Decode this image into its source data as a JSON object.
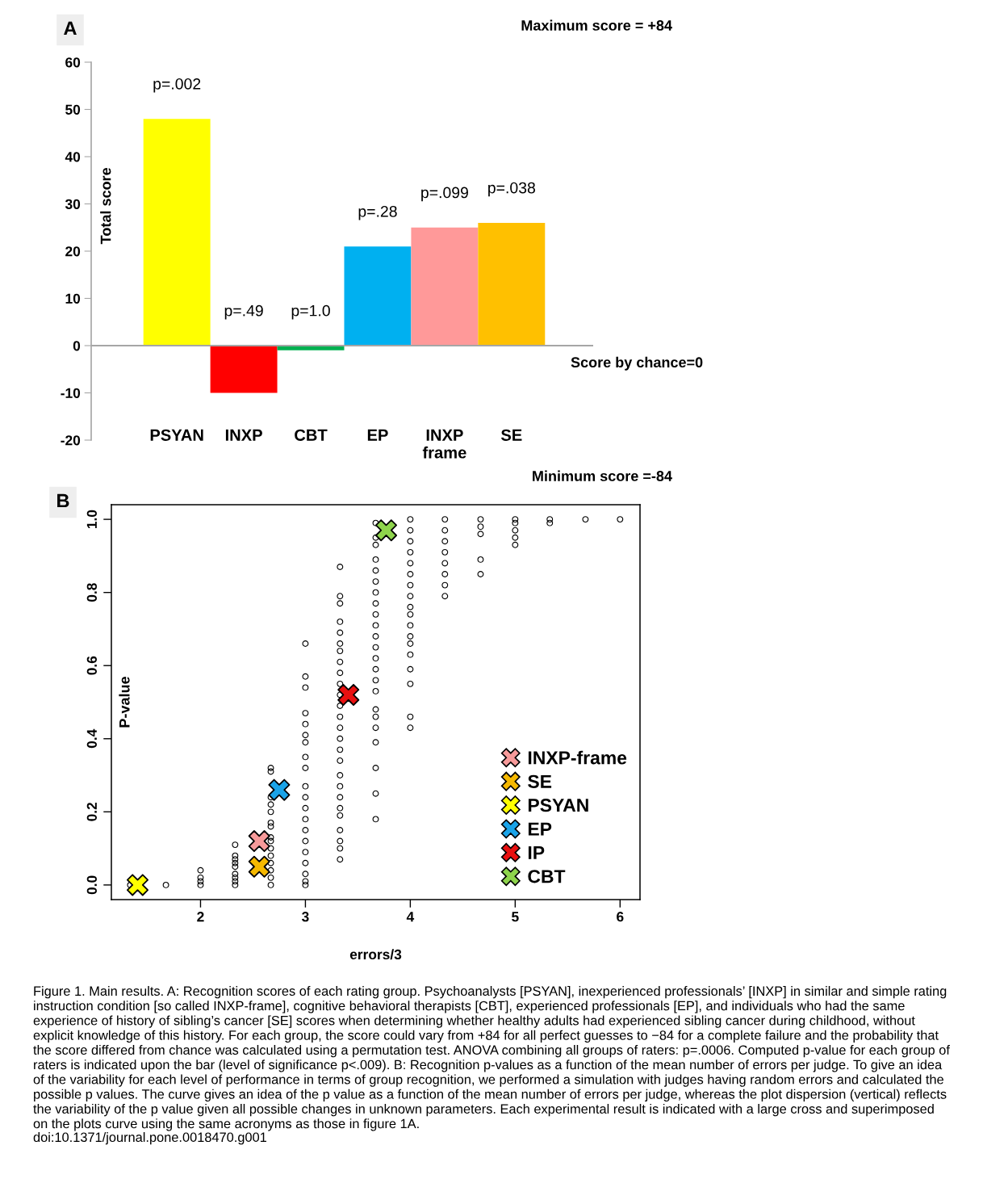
{
  "chart_data": [
    {
      "type": "bar",
      "title": "A",
      "ylabel": "Total score",
      "categories": [
        "PSYAN",
        "INXP",
        "CBT",
        "EP",
        "INXP\nframe",
        "SE"
      ],
      "values": [
        48,
        -10,
        -1,
        21,
        25,
        26
      ],
      "colors": [
        "#ffff00",
        "#ff0000",
        "#00b050",
        "#00b0f0",
        "#ff9999",
        "#ffc000"
      ],
      "ylim": [
        -20,
        60
      ],
      "yticks": [
        -20,
        -10,
        0,
        10,
        20,
        30,
        40,
        50,
        60
      ],
      "ref_lines": [
        {
          "axis": "y",
          "value": 0,
          "label": "Score by chance=0",
          "color": "#a6a6a6"
        }
      ],
      "annotations": [
        "Maximum score = +84",
        "Minimum score =-84",
        {
          "text": "p=.002",
          "x": "PSYAN",
          "y": 48
        },
        {
          "text": "p=.49",
          "x": "INXP",
          "y": 0
        },
        {
          "text": "p=1.0",
          "x": "CBT",
          "y": 0
        },
        {
          "text": "p=.28",
          "x": "EP",
          "y": 21
        },
        {
          "text": "p=.099",
          "x": "INXP\nframe",
          "y": 25
        },
        {
          "text": "p=.038",
          "x": "SE",
          "y": 26
        }
      ]
    },
    {
      "type": "scatter",
      "title": "B",
      "xlabel": "errors/3",
      "ylabel": "P-value",
      "xlim": [
        1.15,
        6.19
      ],
      "ylim": [
        -0.04,
        1.04
      ],
      "xticks": [
        2,
        3,
        4,
        5,
        6
      ],
      "yticks": [
        {
          "value": 0,
          "label": "0.0"
        },
        {
          "value": 0.2,
          "label": "0.2"
        },
        {
          "value": 0.4,
          "label": "0.4"
        },
        {
          "value": 0.6,
          "label": "0.6"
        },
        {
          "value": 0.8,
          "label": "0.8"
        },
        {
          "value": 1,
          "label": "1.0"
        }
      ],
      "legend": "bottom right",
      "series": [
        {
          "color": "#000000",
          "marker": "circle",
          "x": [
            1.33,
            1.67,
            2,
            2,
            2,
            2,
            2.33,
            2.33,
            2.33,
            2.33,
            2.33,
            2.33,
            2.33,
            2.33,
            2.33,
            2.67,
            2.67,
            2.67,
            2.67,
            2.67,
            2.67,
            2.67,
            2.67,
            2.67,
            2.67,
            2.67,
            2.67,
            2.67,
            2.67,
            2.67,
            3,
            3,
            3,
            3,
            3,
            3,
            3,
            3,
            3,
            3,
            3,
            3,
            3,
            3,
            3,
            3,
            3,
            3,
            3,
            3,
            3.33,
            3.33,
            3.33,
            3.33,
            3.33,
            3.33,
            3.33,
            3.33,
            3.33,
            3.33,
            3.33,
            3.33,
            3.33,
            3.33,
            3.33,
            3.33,
            3.33,
            3.33,
            3.33,
            3.33,
            3.33,
            3.33,
            3.33,
            3.33,
            3.33,
            3.33,
            3.67,
            3.67,
            3.67,
            3.67,
            3.67,
            3.67,
            3.67,
            3.67,
            3.67,
            3.67,
            3.67,
            3.67,
            3.67,
            3.67,
            3.67,
            3.67,
            3.67,
            3.67,
            3.67,
            3.67,
            3.67,
            3.67,
            3.67,
            4,
            4,
            4,
            4,
            4,
            4,
            4,
            4,
            4,
            4,
            4,
            4,
            4,
            4,
            4,
            4,
            4,
            4,
            4.33,
            4.33,
            4.33,
            4.33,
            4.33,
            4.33,
            4.33,
            4.33,
            4.67,
            4.67,
            4.67,
            4.67,
            4.67,
            5,
            5,
            5,
            5,
            5,
            5.33,
            5.33,
            5.67,
            6
          ],
          "values": [
            0.0,
            0.0,
            0.0,
            0.01,
            0.02,
            0.04,
            0.0,
            0.01,
            0.02,
            0.03,
            0.05,
            0.06,
            0.07,
            0.08,
            0.11,
            0.0,
            0.02,
            0.04,
            0.06,
            0.08,
            0.1,
            0.12,
            0.13,
            0.16,
            0.17,
            0.2,
            0.22,
            0.24,
            0.31,
            0.32,
            0.0,
            0.01,
            0.03,
            0.06,
            0.09,
            0.12,
            0.15,
            0.18,
            0.21,
            0.24,
            0.27,
            0.32,
            0.35,
            0.39,
            0.41,
            0.44,
            0.47,
            0.54,
            0.57,
            0.66,
            0.07,
            0.1,
            0.12,
            0.15,
            0.19,
            0.21,
            0.24,
            0.27,
            0.3,
            0.34,
            0.37,
            0.4,
            0.43,
            0.46,
            0.49,
            0.52,
            0.55,
            0.58,
            0.61,
            0.64,
            0.66,
            0.69,
            0.72,
            0.77,
            0.79,
            0.87,
            0.18,
            0.25,
            0.32,
            0.39,
            0.43,
            0.46,
            0.48,
            0.53,
            0.56,
            0.59,
            0.62,
            0.65,
            0.68,
            0.71,
            0.74,
            0.77,
            0.8,
            0.83,
            0.86,
            0.89,
            0.93,
            0.95,
            0.99,
            0.43,
            0.46,
            0.55,
            0.59,
            0.63,
            0.66,
            0.68,
            0.71,
            0.74,
            0.76,
            0.79,
            0.82,
            0.85,
            0.88,
            0.91,
            0.94,
            0.97,
            1.0,
            0.79,
            0.82,
            0.85,
            0.88,
            0.91,
            0.94,
            0.97,
            1.0,
            0.85,
            0.89,
            0.96,
            0.98,
            1.0,
            0.93,
            0.95,
            0.97,
            0.99,
            1.0,
            0.99,
            1.0,
            1.0,
            1.0
          ]
        },
        {
          "name": "INXP-frame",
          "color": "#f79a9a",
          "marker": "cross",
          "x": [
            2.56
          ],
          "values": [
            0.12
          ]
        },
        {
          "name": "SE",
          "color": "#f5b800",
          "marker": "cross",
          "x": [
            2.56
          ],
          "values": [
            0.05
          ]
        },
        {
          "name": "PSYAN",
          "color": "#ffff00",
          "marker": "cross",
          "x": [
            1.4
          ],
          "values": [
            0.0
          ]
        },
        {
          "name": "EP",
          "color": "#1aa3e8",
          "marker": "cross",
          "x": [
            2.75
          ],
          "values": [
            0.26
          ]
        },
        {
          "name": "IP",
          "color": "#e81010",
          "marker": "cross",
          "x": [
            3.41
          ],
          "values": [
            0.52
          ]
        },
        {
          "name": "CBT",
          "color": "#8ed44c",
          "marker": "cross",
          "x": [
            3.77
          ],
          "values": [
            0.97
          ]
        }
      ],
      "annotations": [
        "Figure 1. Main results. A: Recognition scores of each rating group. Psychoanalysts [PSYAN], inexperienced professionals’ [INXP] in similar and simple rating instruction condition [so called INXP-frame], cognitive behavioral therapists [CBT], experienced professionals [EP], and individuals who had the same experience of history of sibling’s cancer [SE] scores when determining whether healthy adults had experienced sibling cancer during childhood, without explicit knowledge of this history. For each group, the score could vary from +84 for all perfect guesses to −84 for a complete failure and the probability that the score differed from chance was calculated using a permutation test. ANOVA combining all groups of raters: p=.0006. Computed p-value for each group of raters is indicated upon the bar (level of significance p<.009). B: Recognition p-values as a function of the mean number of errors per judge. To give an idea of the variability for each level of performance in terms of group recognition, we performed a simulation with judges having random errors and calculated the possible p values. The curve gives an idea of the p value as a function of the mean number of errors per judge, whereas the plot dispersion (vertical) reflects the variability of the p value given all possible changes in unknown parameters. Each experimental result is indicated with a large cross and superimposed on the plots curve using the same acronyms as those in figure 1A.",
        "doi:10.1371/journal.pone.0018470.g001"
      ]
    }
  ]
}
